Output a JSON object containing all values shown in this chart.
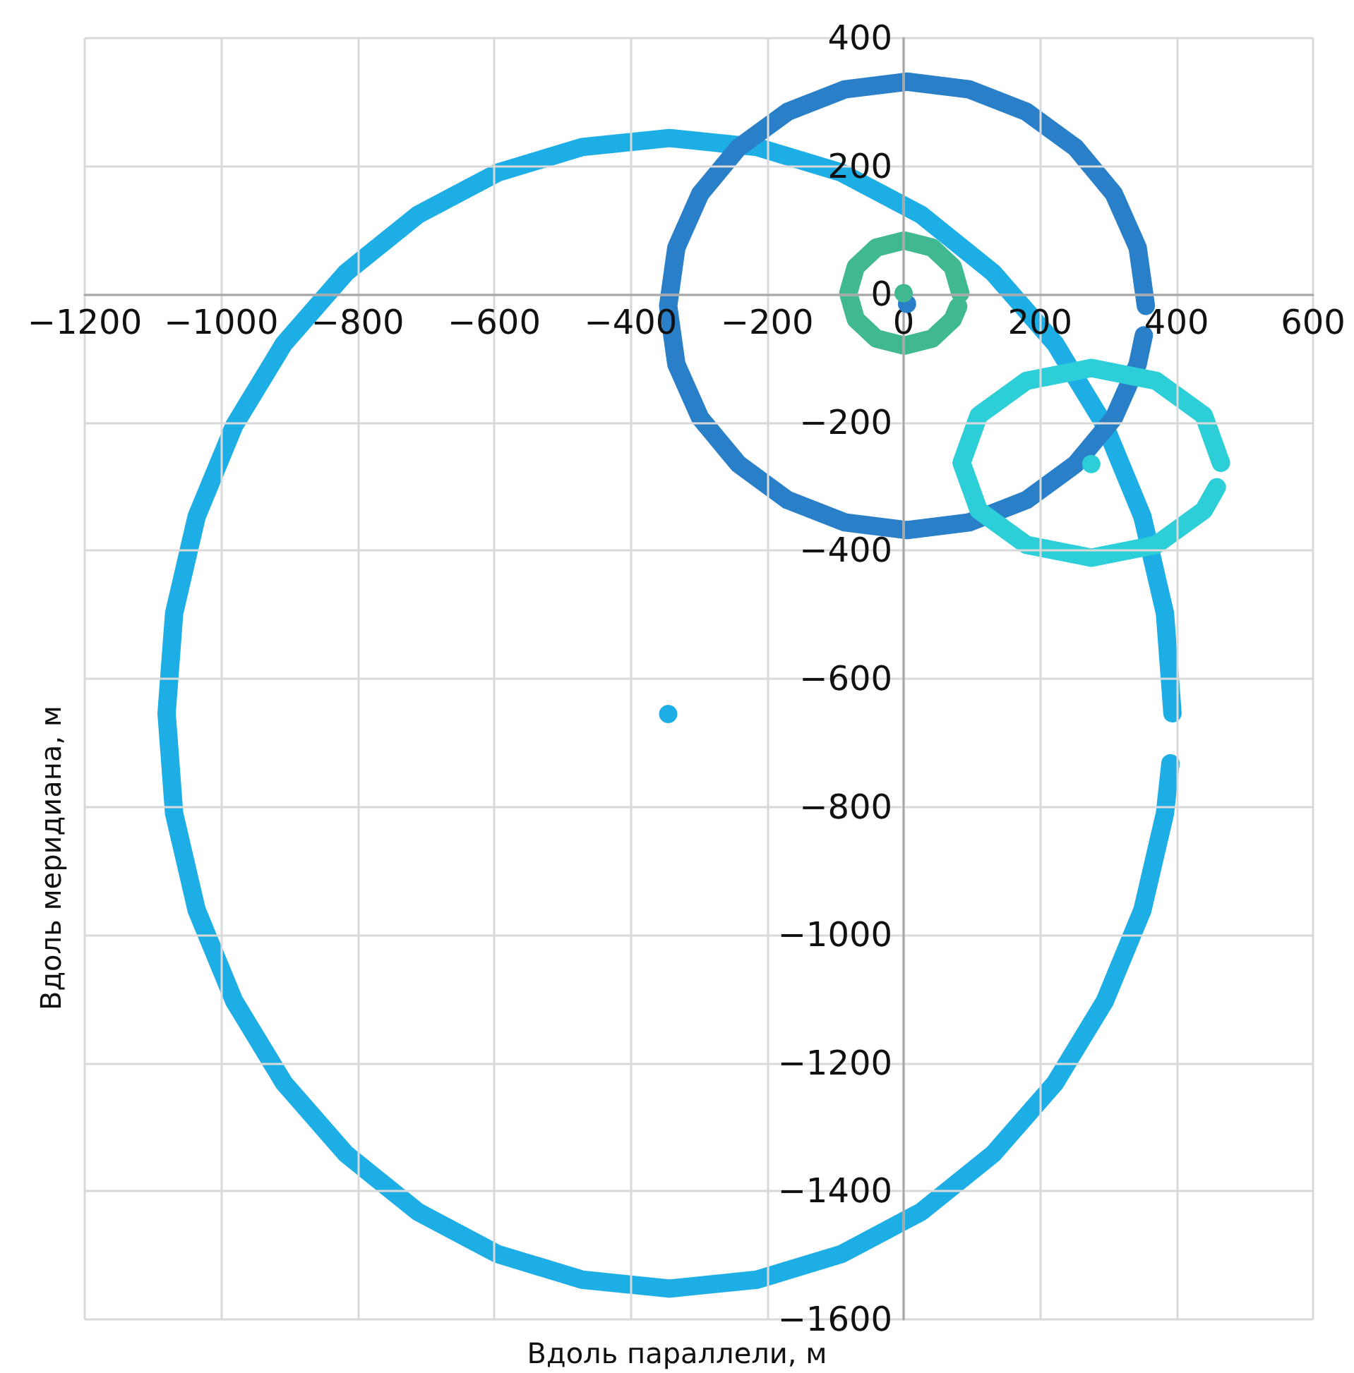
{
  "chart_data": {
    "type": "line",
    "xlabel": "Вдоль параллели, м",
    "ylabel": "Вдоль меридиана, м",
    "xlim": [
      -1200,
      600
    ],
    "ylim": [
      -1600,
      400
    ],
    "xticks": [
      {
        "value": -1200,
        "label": "−1200"
      },
      {
        "value": -1000,
        "label": "−1000"
      },
      {
        "value": -800,
        "label": "−800"
      },
      {
        "value": -600,
        "label": "−600"
      },
      {
        "value": -400,
        "label": "−400"
      },
      {
        "value": -200,
        "label": "−200"
      },
      0,
      200,
      400,
      600
    ],
    "yticks": [
      {
        "value": -1600,
        "label": "−1600"
      },
      {
        "value": -1400,
        "label": "−1400"
      },
      {
        "value": -1200,
        "label": "−1200"
      },
      {
        "value": -1000,
        "label": "−1000"
      },
      {
        "value": -800,
        "label": "−800"
      },
      {
        "value": -600,
        "label": "−600"
      },
      {
        "value": -400,
        "label": "−400"
      },
      {
        "value": -200,
        "label": "−200"
      },
      0,
      200,
      400
    ],
    "grid": true,
    "series": [
      {
        "marker": "none",
        "color": "#1eaee6",
        "x": [
          394,
          383,
          350,
          295,
          222,
          131,
          26,
          -91,
          -215,
          -343,
          -471,
          -595,
          -712,
          -817,
          -908,
          -981,
          -1036,
          -1069,
          -1080,
          -1069,
          -1036,
          -981,
          -908,
          -817,
          -712,
          -595,
          -471,
          -343,
          -215,
          -91,
          26,
          131,
          222,
          295,
          350,
          383,
          391
        ],
        "values": [
          -654,
          -498,
          -347,
          -205,
          -77,
          34,
          124,
          190,
          230,
          244,
          230,
          190,
          124,
          34,
          -77,
          -205,
          -347,
          -498,
          -654,
          -810,
          -961,
          -1103,
          -1231,
          -1342,
          -1432,
          -1498,
          -1538,
          -1552,
          -1538,
          -1498,
          -1432,
          -1342,
          -1231,
          -1103,
          -961,
          -810,
          -732
        ]
      },
      {
        "marker": "none",
        "color": "#2a80c8",
        "x": [
          355,
          343,
          308,
          252,
          180,
          96,
          5,
          -86,
          -170,
          -242,
          -298,
          -333,
          -345,
          -333,
          -298,
          -242,
          -170,
          -86,
          5,
          96,
          180,
          252,
          308,
          343,
          352
        ],
        "values": [
          -18,
          73,
          157,
          229,
          285,
          320,
          332,
          320,
          285,
          229,
          157,
          73,
          -18,
          -109,
          -193,
          -265,
          -321,
          -356,
          -368,
          -356,
          -321,
          -265,
          -193,
          -109,
          -64
        ]
      },
      {
        "marker": "none",
        "color": "#40b890",
        "x": [
          83,
          72,
          42,
          1,
          -40,
          -70,
          -81,
          -70,
          -40,
          1,
          42,
          72,
          80
        ],
        "values": [
          2,
          43,
          73,
          84,
          73,
          43,
          2,
          -39,
          -69,
          -80,
          -69,
          -39,
          -19
        ]
      },
      {
        "marker": "none",
        "color": "#2ccfd8",
        "x": [
          465,
          440,
          370,
          275,
          180,
          110,
          85,
          110,
          180,
          275,
          370,
          440,
          459
        ],
        "values": [
          -263,
          -189,
          -135,
          -115,
          -135,
          -189,
          -263,
          -337,
          -391,
          -411,
          -391,
          -337,
          -301
        ]
      },
      {
        "type": "scatter",
        "marker": "circle",
        "color": "#1eaee6",
        "x": [
          -345
        ],
        "values": [
          -655
        ]
      },
      {
        "type": "scatter",
        "marker": "circle",
        "color": "#2a80c8",
        "x": [
          5
        ],
        "values": [
          -15
        ]
      },
      {
        "type": "scatter",
        "marker": "circle",
        "color": "#40b890",
        "x": [
          0
        ],
        "values": [
          2
        ]
      },
      {
        "type": "scatter",
        "marker": "circle",
        "color": "#2ccfd8",
        "x": [
          275
        ],
        "values": [
          -265
        ]
      }
    ]
  }
}
